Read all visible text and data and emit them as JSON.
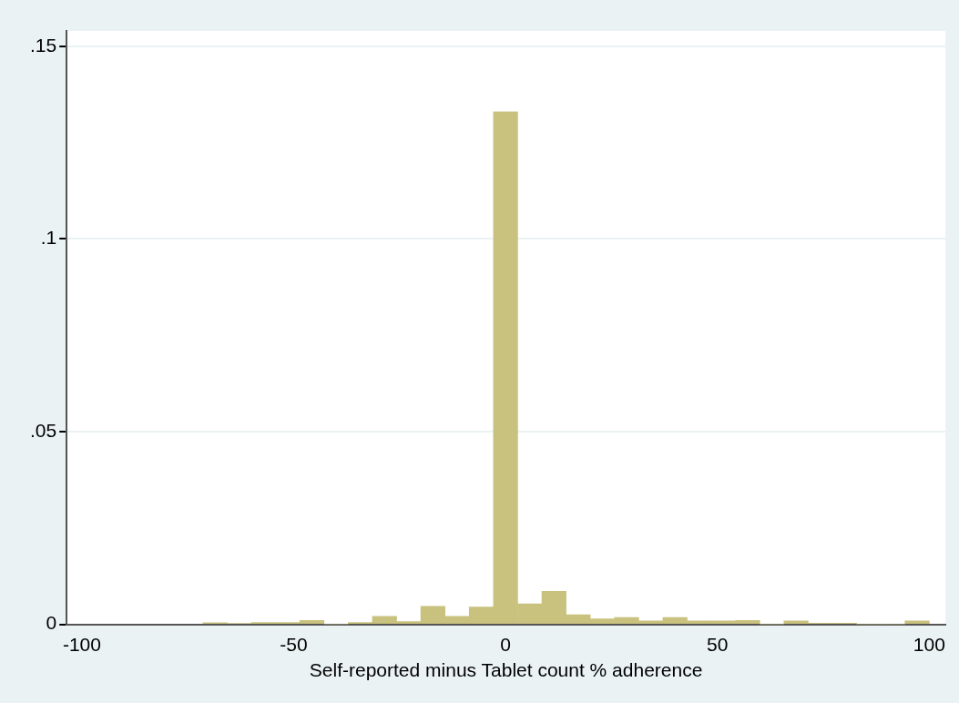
{
  "chart_data": {
    "type": "histogram",
    "xlabel": "Self-reported minus Tablet count % adherence",
    "bins": [
      -71.43,
      -65.71,
      -60,
      -54.29,
      -48.57,
      -42.86,
      -37.14,
      -31.43,
      -25.71,
      -20,
      -14.29,
      -8.57,
      -2.86,
      2.86,
      8.57,
      14.29,
      20,
      25.71,
      31.43,
      37.14,
      42.86,
      48.57,
      54.29,
      60,
      65.71,
      71.43,
      77.14,
      82.86,
      88.57,
      94.29,
      100
    ],
    "values": [
      0.0004,
      0.0002,
      0.0005,
      0.0005,
      0.001,
      0,
      0.0005,
      0.0021,
      0.0007,
      0.0047,
      0.0021,
      0.0045,
      0.133,
      0.0053,
      0.0086,
      0.0025,
      0.0014,
      0.0018,
      0.0009,
      0.0018,
      0.0009,
      0.0009,
      0.001,
      0,
      0.0009,
      0.0003,
      0.0003,
      0,
      0,
      0.0009
    ],
    "color": "#c9c27f",
    "xlim": [
      -103.6,
      103.8
    ],
    "xticks": [
      -100,
      -50,
      0,
      50,
      100
    ],
    "ylim": [
      0,
      0.154
    ],
    "yticks": [
      0,
      {
        "value": 0.05,
        "label": ".05"
      },
      {
        "value": 0.1,
        "label": ".1"
      },
      {
        "value": 0.15,
        "label": ".15"
      }
    ],
    "grid": "y",
    "legend": false
  }
}
